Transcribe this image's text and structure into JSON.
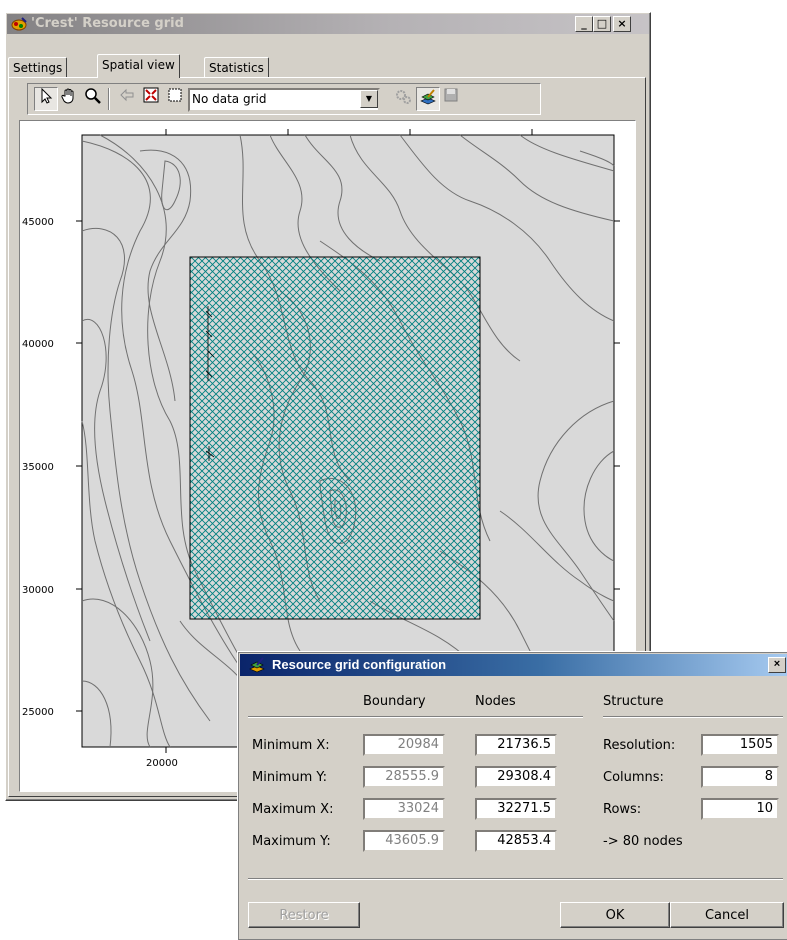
{
  "window": {
    "title": "'Crest' Resource grid",
    "controls": [
      "_",
      "□",
      "×"
    ]
  },
  "tabs": [
    {
      "label": "Settings",
      "active": false
    },
    {
      "label": "Spatial view",
      "active": true
    },
    {
      "label": "Statistics",
      "active": false
    }
  ],
  "toolbar": {
    "tools": [
      "select-arrow-icon",
      "pan-hand-icon",
      "zoom-magnifier-icon",
      "back-arrow-icon",
      "zoom-extent-icon",
      "select-region-icon"
    ],
    "grid_select": "No data grid",
    "right_tools": [
      "gears-icon",
      "layer-edit-icon",
      "save-icon"
    ]
  },
  "map": {
    "y_ticks": [
      "45000",
      "40000",
      "35000",
      "30000",
      "25000"
    ],
    "x_ticks": [
      "20000"
    ],
    "region_color": "#008080",
    "background": "#d9d9d9"
  },
  "dialog": {
    "title": "Resource grid configuration",
    "headers": {
      "boundary": "Boundary",
      "nodes": "Nodes",
      "structure": "Structure"
    },
    "rows": [
      {
        "label": "Minimum X:",
        "boundary": "20984",
        "nodes": "21736.5"
      },
      {
        "label": "Minimum Y:",
        "boundary": "28555.9",
        "nodes": "29308.4"
      },
      {
        "label": "Maximum X:",
        "boundary": "33024",
        "nodes": "32271.5"
      },
      {
        "label": "Maximum Y:",
        "boundary": "43605.9",
        "nodes": "42853.4"
      }
    ],
    "structure": [
      {
        "label": "Resolution:",
        "value": "1505"
      },
      {
        "label": "Columns:",
        "value": "8"
      },
      {
        "label": "Rows:",
        "value": "10"
      }
    ],
    "summary": "-> 80 nodes",
    "buttons": {
      "restore": "Restore",
      "ok": "OK",
      "cancel": "Cancel"
    },
    "close": "×"
  }
}
